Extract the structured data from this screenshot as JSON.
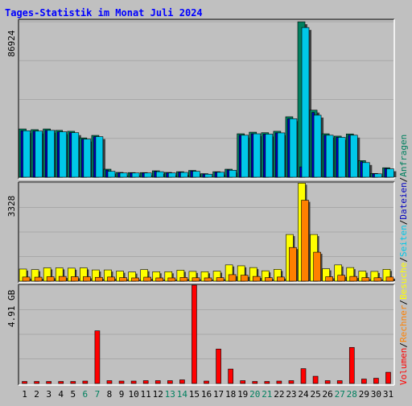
{
  "chart_data": {
    "type": "bar",
    "title": "Tages-Statistik im Monat Juli 2024",
    "categories": [
      "1",
      "2",
      "3",
      "4",
      "5",
      "6",
      "7",
      "8",
      "9",
      "10",
      "11",
      "12",
      "13",
      "14",
      "15",
      "16",
      "17",
      "18",
      "19",
      "20",
      "21",
      "22",
      "23",
      "24",
      "25",
      "26",
      "27",
      "28",
      "29",
      "30",
      "31"
    ],
    "weekend_days": [
      "6",
      "7",
      "13",
      "14",
      "20",
      "21",
      "27",
      "28"
    ],
    "panels": [
      {
        "id": "anfragen",
        "max_label": "86924",
        "ymax": 86924,
        "series": [
          {
            "name": "Anfragen",
            "color": "#00805f",
            "values": [
              27000,
              26600,
              27000,
              26200,
              25700,
              22000,
              23400,
              4500,
              2700,
              2600,
              2600,
              3600,
              2700,
              3100,
              3800,
              2000,
              3100,
              4500,
              24300,
              25200,
              24900,
              25700,
              33800,
              86900,
              37500,
              24300,
              23000,
              24200,
              9300,
              2100,
              5300
            ]
          },
          {
            "name": "Dateien",
            "color": "#0000c0",
            "values": [
              26000,
              25800,
              26200,
              25400,
              24900,
              21300,
              22700,
              4000,
              2500,
              2400,
              2400,
              3300,
              2500,
              2900,
              3500,
              1800,
              2900,
              4100,
              23500,
              24300,
              24100,
              24800,
              32700,
              5800,
              36200,
              23500,
              22300,
              23500,
              8700,
              1900,
              4900
            ]
          },
          {
            "name": "Seiten",
            "color": "#00c8e8",
            "values": [
              26000,
              25800,
              26200,
              25400,
              24900,
              21300,
              22700,
              3300,
              2400,
              2400,
              2400,
              3100,
              2400,
              2700,
              3300,
              1700,
              2800,
              3900,
              23500,
              24300,
              24100,
              24800,
              32700,
              83700,
              34700,
              23500,
              22300,
              23500,
              8200,
              1900,
              4700
            ]
          }
        ]
      },
      {
        "id": "besuche",
        "max_label": "3328",
        "ymax": 3328,
        "series": [
          {
            "name": "Besuche",
            "color": "#ffff00",
            "values": [
              410,
              390,
              450,
              450,
              440,
              450,
              380,
              380,
              340,
              310,
              390,
              320,
              320,
              370,
              330,
              320,
              340,
              550,
              520,
              460,
              350,
              400,
              1580,
              3320,
              1580,
              420,
              550,
              460,
              340,
              330,
              400
            ]
          },
          {
            "name": "Rechner",
            "color": "#ff8000",
            "values": [
              140,
              135,
              150,
              160,
              150,
              150,
              130,
              140,
              120,
              110,
              135,
              110,
              110,
              125,
              115,
              110,
              120,
              220,
              200,
              160,
              120,
              140,
              1140,
              2740,
              980,
              150,
              200,
              160,
              120,
              115,
              140
            ]
          }
        ]
      },
      {
        "id": "volumen",
        "max_label": "4.91 GB",
        "ymax": 4.91,
        "series": [
          {
            "name": "Volumen",
            "color": "#ff0000",
            "values": [
              0.1,
              0.1,
              0.1,
              0.1,
              0.1,
              0.12,
              2.63,
              0.14,
              0.12,
              0.12,
              0.14,
              0.14,
              0.14,
              0.18,
              4.91,
              0.12,
              1.72,
              0.72,
              0.14,
              0.1,
              0.1,
              0.12,
              0.14,
              0.74,
              0.36,
              0.14,
              0.14,
              1.8,
              0.22,
              0.26,
              0.56
            ]
          }
        ]
      }
    ],
    "side_legend": [
      {
        "name": "Volumen",
        "color": "#ff0000"
      },
      {
        "name": "Rechner",
        "color": "#ff8000"
      },
      {
        "name": "Besuche",
        "color": "#ffff00"
      },
      {
        "name": "Seiten",
        "color": "#00c8e8"
      },
      {
        "name": "Dateien",
        "color": "#0000c0"
      },
      {
        "name": "Anfragen",
        "color": "#00805f"
      }
    ],
    "legend_separator": "/",
    "colors": {
      "background": "#c0c0c0",
      "title": "#0000ff",
      "gridline": "#a8a8a8",
      "axis_label": "#000000",
      "weekend_label": "#00805f"
    }
  }
}
